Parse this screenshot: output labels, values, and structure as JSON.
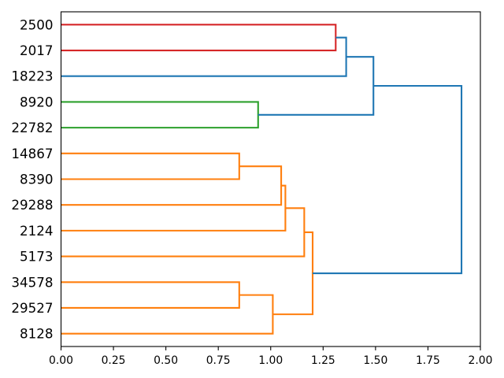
{
  "figure": {
    "background": "#ffffff",
    "frame_color": "#000000"
  },
  "chart_data": {
    "type": "dendrogram",
    "orientation": "right",
    "title": "",
    "xlabel": "",
    "ylabel": "",
    "grid": false,
    "legend": null,
    "leaves": [
      "2500",
      "2017",
      "18223",
      "8920",
      "22782",
      "14867",
      "8390",
      "29288",
      "2124",
      "5173",
      "34578",
      "29527",
      "8128"
    ],
    "links": [
      {
        "id": 13,
        "children": [
          0,
          1
        ],
        "distance": 1.31,
        "color": "#d62728"
      },
      {
        "id": 14,
        "children": [
          13,
          2
        ],
        "distance": 1.36,
        "color": "#1f77b4"
      },
      {
        "id": 15,
        "children": [
          3,
          4
        ],
        "distance": 0.94,
        "color": "#2ca02c"
      },
      {
        "id": 16,
        "children": [
          14,
          15
        ],
        "distance": 1.49,
        "color": "#1f77b4"
      },
      {
        "id": 17,
        "children": [
          5,
          6
        ],
        "distance": 0.85,
        "color": "#ff7f0e"
      },
      {
        "id": 18,
        "children": [
          17,
          7
        ],
        "distance": 1.05,
        "color": "#ff7f0e"
      },
      {
        "id": 19,
        "children": [
          18,
          8
        ],
        "distance": 1.07,
        "color": "#ff7f0e"
      },
      {
        "id": 20,
        "children": [
          19,
          9
        ],
        "distance": 1.16,
        "color": "#ff7f0e"
      },
      {
        "id": 21,
        "children": [
          10,
          11
        ],
        "distance": 0.85,
        "color": "#ff7f0e"
      },
      {
        "id": 22,
        "children": [
          21,
          12
        ],
        "distance": 1.01,
        "color": "#ff7f0e"
      },
      {
        "id": 23,
        "children": [
          20,
          22
        ],
        "distance": 1.2,
        "color": "#ff7f0e"
      },
      {
        "id": 24,
        "children": [
          16,
          23
        ],
        "distance": 1.91,
        "color": "#1f77b4"
      }
    ],
    "x_axis": {
      "tick_labels": [
        "0.00",
        "0.25",
        "0.50",
        "0.75",
        "1.00",
        "1.25",
        "1.50",
        "1.75",
        "2.00"
      ],
      "tick_values": [
        0.0,
        0.25,
        0.5,
        0.75,
        1.0,
        1.25,
        1.5,
        1.75,
        2.0
      ],
      "range": [
        0.0,
        2.0
      ]
    },
    "colors": {
      "above_threshold_link": "#1f77b4",
      "cluster_top": "#d62728",
      "cluster_middle": "#2ca02c",
      "cluster_bottom": "#ff7f0e"
    },
    "line_width": 2.1
  }
}
